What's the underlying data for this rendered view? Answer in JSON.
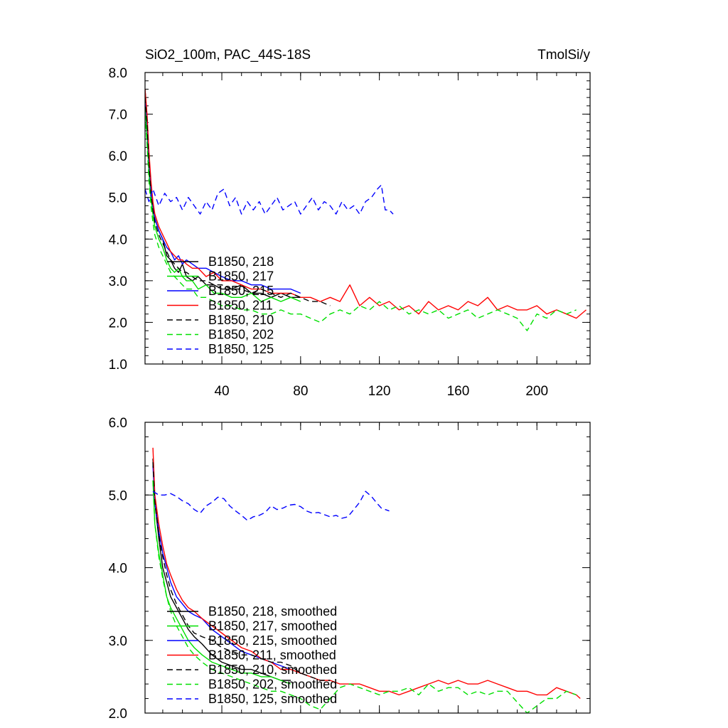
{
  "chart_data": [
    {
      "type": "line",
      "title_left": "SiO2_100m, PAC_44S-18S",
      "title_right": "TmolSi/y",
      "xlim": [
        1,
        227
      ],
      "ylim": [
        1.0,
        8.0
      ],
      "xticks": [
        40,
        80,
        120,
        160,
        200
      ],
      "xtick_labels": [
        "40",
        "80",
        "120",
        "160",
        "200"
      ],
      "yticks": [
        1.0,
        2.0,
        3.0,
        4.0,
        5.0,
        6.0,
        7.0,
        8.0
      ],
      "ytick_labels": [
        "1.0",
        "2.0",
        "3.0",
        "4.0",
        "5.0",
        "6.0",
        "7.0",
        "8.0"
      ],
      "series": [
        {
          "name": "B1850, 218",
          "color": "#000000",
          "dash": "solid",
          "x": [
            1,
            2,
            3,
            4,
            5,
            6,
            8,
            10,
            12,
            14,
            16,
            18,
            20,
            22,
            25,
            28,
            32,
            36,
            40,
            45,
            50,
            55,
            60,
            65,
            70,
            75,
            80
          ],
          "y": [
            7.6,
            6.9,
            6.0,
            5.3,
            4.8,
            4.5,
            4.2,
            4.0,
            3.6,
            3.5,
            3.3,
            3.2,
            3.4,
            3.1,
            3.0,
            3.1,
            2.9,
            2.9,
            2.8,
            2.8,
            2.9,
            2.7,
            2.7,
            2.6,
            2.7,
            2.6,
            2.6
          ]
        },
        {
          "name": "B1850, 217",
          "color": "#00e000",
          "dash": "solid",
          "x": [
            1,
            2,
            3,
            4,
            5,
            6,
            8,
            10,
            12,
            14,
            16,
            18,
            20,
            22,
            25,
            28,
            32,
            36,
            40,
            45,
            50,
            55,
            60,
            65,
            70,
            75,
            80
          ],
          "y": [
            7.2,
            6.5,
            5.6,
            5.0,
            4.6,
            4.3,
            4.0,
            3.8,
            3.5,
            3.3,
            3.2,
            3.3,
            3.1,
            3.0,
            3.0,
            2.8,
            2.9,
            2.7,
            2.7,
            2.6,
            2.6,
            2.7,
            2.5,
            2.6,
            2.5,
            2.6,
            2.5
          ]
        },
        {
          "name": "B1850, 215",
          "color": "#0000ff",
          "dash": "solid",
          "x": [
            1,
            2,
            3,
            4,
            5,
            6,
            8,
            10,
            12,
            14,
            16,
            18,
            20,
            22,
            25,
            28,
            32,
            36,
            40,
            45,
            50,
            55,
            60,
            65,
            70,
            75,
            80
          ],
          "y": [
            7.5,
            6.8,
            5.9,
            5.2,
            4.8,
            4.5,
            4.2,
            4.0,
            3.8,
            3.7,
            3.5,
            3.6,
            3.4,
            3.5,
            3.4,
            3.3,
            3.3,
            3.2,
            3.1,
            3.0,
            3.0,
            2.9,
            2.9,
            2.8,
            2.8,
            2.8,
            2.7
          ]
        },
        {
          "name": "B1850, 211",
          "color": "#ff0000",
          "dash": "solid",
          "x": [
            1,
            2,
            3,
            4,
            5,
            6,
            8,
            10,
            12,
            14,
            16,
            18,
            20,
            22,
            25,
            28,
            32,
            36,
            40,
            45,
            50,
            55,
            60,
            65,
            70,
            75,
            80,
            85,
            90,
            95,
            100,
            105,
            110,
            115,
            120,
            125,
            130,
            135,
            140,
            145,
            150,
            155,
            160,
            165,
            170,
            175,
            180,
            185,
            190,
            195,
            200,
            205,
            210,
            215,
            220,
            225
          ],
          "y": [
            7.6,
            7.0,
            6.1,
            5.4,
            4.9,
            4.6,
            4.3,
            4.1,
            3.9,
            3.7,
            3.6,
            3.5,
            3.5,
            3.4,
            3.3,
            3.3,
            3.1,
            3.2,
            3.0,
            3.0,
            2.9,
            2.8,
            2.8,
            2.7,
            2.7,
            2.7,
            2.6,
            2.6,
            2.5,
            2.6,
            2.5,
            2.9,
            2.4,
            2.6,
            2.4,
            2.5,
            2.3,
            2.4,
            2.2,
            2.5,
            2.3,
            2.4,
            2.3,
            2.5,
            2.4,
            2.6,
            2.3,
            2.4,
            2.3,
            2.3,
            2.4,
            2.2,
            2.3,
            2.2,
            2.1,
            2.3
          ]
        },
        {
          "name": "B1850, 210",
          "color": "#000000",
          "dash": "dash",
          "x": [
            1,
            2,
            3,
            4,
            5,
            6,
            8,
            10,
            12,
            14,
            16,
            18,
            20,
            22,
            25,
            28,
            32,
            36,
            40,
            45,
            50,
            55,
            60,
            65,
            70,
            75,
            80,
            85,
            90,
            95
          ],
          "y": [
            7.4,
            6.8,
            5.8,
            5.1,
            4.7,
            4.4,
            4.1,
            3.9,
            3.7,
            3.5,
            3.4,
            3.3,
            3.2,
            3.2,
            3.1,
            3.0,
            3.0,
            2.9,
            2.9,
            2.8,
            2.8,
            2.7,
            2.8,
            2.7,
            2.6,
            2.7,
            2.6,
            2.5,
            2.5,
            2.4
          ]
        },
        {
          "name": "B1850, 202",
          "color": "#00e000",
          "dash": "dash",
          "x": [
            1,
            2,
            3,
            4,
            5,
            6,
            8,
            10,
            12,
            14,
            16,
            18,
            20,
            22,
            25,
            28,
            32,
            36,
            40,
            45,
            50,
            55,
            60,
            65,
            70,
            75,
            80,
            85,
            90,
            95,
            100,
            105,
            110,
            115,
            120,
            125,
            130,
            135,
            140,
            145,
            150,
            155,
            160,
            165,
            170,
            175,
            180,
            185,
            190,
            195,
            200,
            205,
            210,
            215,
            220
          ],
          "y": [
            7.0,
            6.3,
            5.4,
            4.8,
            4.4,
            4.1,
            3.8,
            3.6,
            3.4,
            3.2,
            3.1,
            3.0,
            2.9,
            2.8,
            2.8,
            2.6,
            2.6,
            2.5,
            2.4,
            2.4,
            2.3,
            2.3,
            2.2,
            2.2,
            2.3,
            2.2,
            2.2,
            2.1,
            2.0,
            2.2,
            2.3,
            2.2,
            2.4,
            2.3,
            2.5,
            2.3,
            2.4,
            2.2,
            2.3,
            2.2,
            2.3,
            2.1,
            2.2,
            2.3,
            2.1,
            2.2,
            2.3,
            2.2,
            2.1,
            1.8,
            2.2,
            2.1,
            2.3,
            2.2,
            2.3
          ]
        },
        {
          "name": "B1850, 125",
          "color": "#0000ff",
          "dash": "dash",
          "x": [
            1,
            3,
            5,
            8,
            11,
            14,
            17,
            20,
            23,
            26,
            29,
            32,
            35,
            38,
            41,
            44,
            47,
            50,
            53,
            56,
            59,
            62,
            65,
            68,
            71,
            74,
            77,
            80,
            83,
            86,
            89,
            92,
            95,
            98,
            101,
            104,
            107,
            110,
            113,
            116,
            119,
            121,
            123,
            125,
            127
          ],
          "y": [
            5.2,
            4.9,
            5.2,
            4.8,
            5.1,
            4.9,
            5.0,
            4.7,
            5.0,
            4.8,
            4.6,
            4.9,
            4.7,
            5.1,
            5.2,
            4.8,
            5.0,
            4.6,
            4.9,
            4.7,
            4.9,
            4.6,
            4.8,
            5.0,
            4.7,
            4.8,
            4.9,
            4.6,
            4.8,
            5.0,
            4.7,
            4.9,
            4.8,
            4.6,
            4.9,
            4.7,
            4.8,
            4.6,
            4.9,
            5.0,
            5.2,
            5.3,
            4.7,
            4.7,
            4.6
          ]
        }
      ]
    },
    {
      "type": "line",
      "xlim": [
        1,
        227
      ],
      "ylim": [
        2.0,
        6.0
      ],
      "xticks": [
        40,
        80,
        120,
        160,
        200
      ],
      "yticks": [
        2.0,
        3.0,
        4.0,
        5.0,
        6.0
      ],
      "ytick_labels": [
        "2.0",
        "3.0",
        "4.0",
        "5.0",
        "6.0"
      ],
      "series": [
        {
          "name": "B1850, 218, smoothed",
          "color": "#000000",
          "dash": "solid",
          "x": [
            5,
            6,
            8,
            10,
            12,
            14,
            17,
            20,
            23,
            26,
            30,
            35,
            40,
            45,
            50,
            55,
            60,
            65,
            70,
            75
          ],
          "y": [
            5.5,
            4.9,
            4.4,
            4.0,
            3.8,
            3.6,
            3.45,
            3.3,
            3.15,
            3.05,
            2.95,
            2.8,
            2.7,
            2.65,
            2.6,
            2.6,
            2.55,
            2.5,
            2.45,
            2.45
          ]
        },
        {
          "name": "B1850, 217, smoothed",
          "color": "#00e000",
          "dash": "solid",
          "x": [
            5,
            6,
            8,
            10,
            12,
            14,
            17,
            20,
            23,
            26,
            30,
            35,
            40,
            45,
            50,
            55,
            60,
            65,
            70,
            75
          ],
          "y": [
            5.2,
            4.6,
            4.2,
            3.9,
            3.6,
            3.45,
            3.3,
            3.15,
            3.0,
            2.9,
            2.8,
            2.7,
            2.65,
            2.6,
            2.55,
            2.55,
            2.5,
            2.5,
            2.45,
            2.4
          ]
        },
        {
          "name": "B1850, 215, smoothed",
          "color": "#0000ff",
          "dash": "solid",
          "x": [
            5,
            6,
            8,
            10,
            12,
            14,
            17,
            20,
            23,
            26,
            30,
            35,
            40,
            45,
            50,
            55,
            60,
            65,
            70,
            75
          ],
          "y": [
            5.4,
            4.9,
            4.5,
            4.2,
            4.0,
            3.8,
            3.6,
            3.5,
            3.4,
            3.35,
            3.3,
            3.15,
            3.05,
            2.95,
            2.85,
            2.8,
            2.75,
            2.7,
            2.65,
            2.6
          ]
        },
        {
          "name": "B1850, 211, smoothed",
          "color": "#ff0000",
          "dash": "solid",
          "x": [
            5,
            6,
            8,
            10,
            12,
            14,
            17,
            20,
            23,
            26,
            30,
            35,
            40,
            45,
            50,
            55,
            60,
            65,
            70,
            75,
            80,
            85,
            90,
            95,
            100,
            105,
            110,
            115,
            120,
            125,
            130,
            135,
            140,
            145,
            150,
            155,
            160,
            165,
            170,
            175,
            180,
            185,
            190,
            195,
            200,
            205,
            210,
            215,
            220,
            222
          ],
          "y": [
            5.65,
            5.0,
            4.6,
            4.3,
            4.05,
            3.9,
            3.7,
            3.55,
            3.45,
            3.4,
            3.3,
            3.2,
            3.1,
            3.0,
            2.9,
            2.85,
            2.75,
            2.7,
            2.6,
            2.6,
            2.55,
            2.5,
            2.45,
            2.45,
            2.4,
            2.4,
            2.4,
            2.35,
            2.3,
            2.3,
            2.25,
            2.3,
            2.35,
            2.4,
            2.45,
            2.4,
            2.45,
            2.4,
            2.4,
            2.45,
            2.4,
            2.35,
            2.3,
            2.3,
            2.25,
            2.25,
            2.35,
            2.3,
            2.25,
            2.2
          ]
        },
        {
          "name": "B1850, 210, smoothed",
          "color": "#000000",
          "dash": "dash",
          "x": [
            5,
            6,
            8,
            10,
            12,
            14,
            17,
            20,
            23,
            26,
            30,
            35,
            40,
            45,
            50,
            55,
            60,
            65,
            70,
            75,
            80,
            85,
            90,
            95
          ],
          "y": [
            5.45,
            4.9,
            4.45,
            4.15,
            3.9,
            3.7,
            3.5,
            3.35,
            3.2,
            3.1,
            3.05,
            3.0,
            2.9,
            2.85,
            2.8,
            2.8,
            2.75,
            2.7,
            2.7,
            2.65,
            2.55,
            2.5,
            2.45,
            2.45
          ]
        },
        {
          "name": "B1850, 202, smoothed",
          "color": "#00e000",
          "dash": "dash",
          "x": [
            5,
            6,
            8,
            10,
            12,
            14,
            17,
            20,
            23,
            26,
            30,
            35,
            40,
            45,
            50,
            55,
            60,
            65,
            70,
            75,
            80,
            85,
            90,
            95,
            100,
            105,
            110,
            115,
            120,
            125,
            130,
            135,
            140,
            145,
            150,
            155,
            160,
            165,
            170,
            175,
            180,
            185,
            190,
            195,
            200,
            205,
            210,
            215,
            220
          ],
          "y": [
            5.2,
            4.6,
            4.15,
            3.85,
            3.6,
            3.4,
            3.2,
            3.05,
            2.9,
            2.8,
            2.7,
            2.6,
            2.55,
            2.5,
            2.45,
            2.4,
            2.35,
            2.3,
            2.3,
            2.25,
            2.2,
            2.1,
            2.05,
            2.2,
            2.35,
            2.4,
            2.35,
            2.3,
            2.25,
            2.3,
            2.3,
            2.35,
            2.25,
            2.4,
            2.3,
            2.35,
            2.35,
            2.25,
            2.3,
            2.25,
            2.3,
            2.3,
            2.15,
            2.0,
            2.1,
            2.2,
            2.2,
            2.3,
            2.25
          ]
        },
        {
          "name": "B1850, 125, smoothed",
          "color": "#0000ff",
          "dash": "dash",
          "x": [
            5,
            8,
            11,
            14,
            17,
            20,
            23,
            26,
            29,
            32,
            35,
            38,
            41,
            44,
            47,
            50,
            53,
            56,
            59,
            62,
            65,
            68,
            71,
            74,
            77,
            80,
            83,
            86,
            89,
            92,
            95,
            98,
            101,
            104,
            107,
            110,
            113,
            116,
            119,
            121,
            123,
            125
          ],
          "y": [
            5.05,
            5.0,
            5.0,
            5.02,
            4.98,
            4.92,
            4.88,
            4.8,
            4.75,
            4.85,
            4.9,
            4.97,
            4.95,
            4.85,
            4.78,
            4.72,
            4.65,
            4.7,
            4.72,
            4.76,
            4.85,
            4.8,
            4.82,
            4.86,
            4.87,
            4.84,
            4.78,
            4.75,
            4.76,
            4.73,
            4.7,
            4.72,
            4.68,
            4.7,
            4.8,
            4.9,
            5.05,
            4.98,
            4.88,
            4.82,
            4.8,
            4.78
          ]
        }
      ]
    }
  ]
}
